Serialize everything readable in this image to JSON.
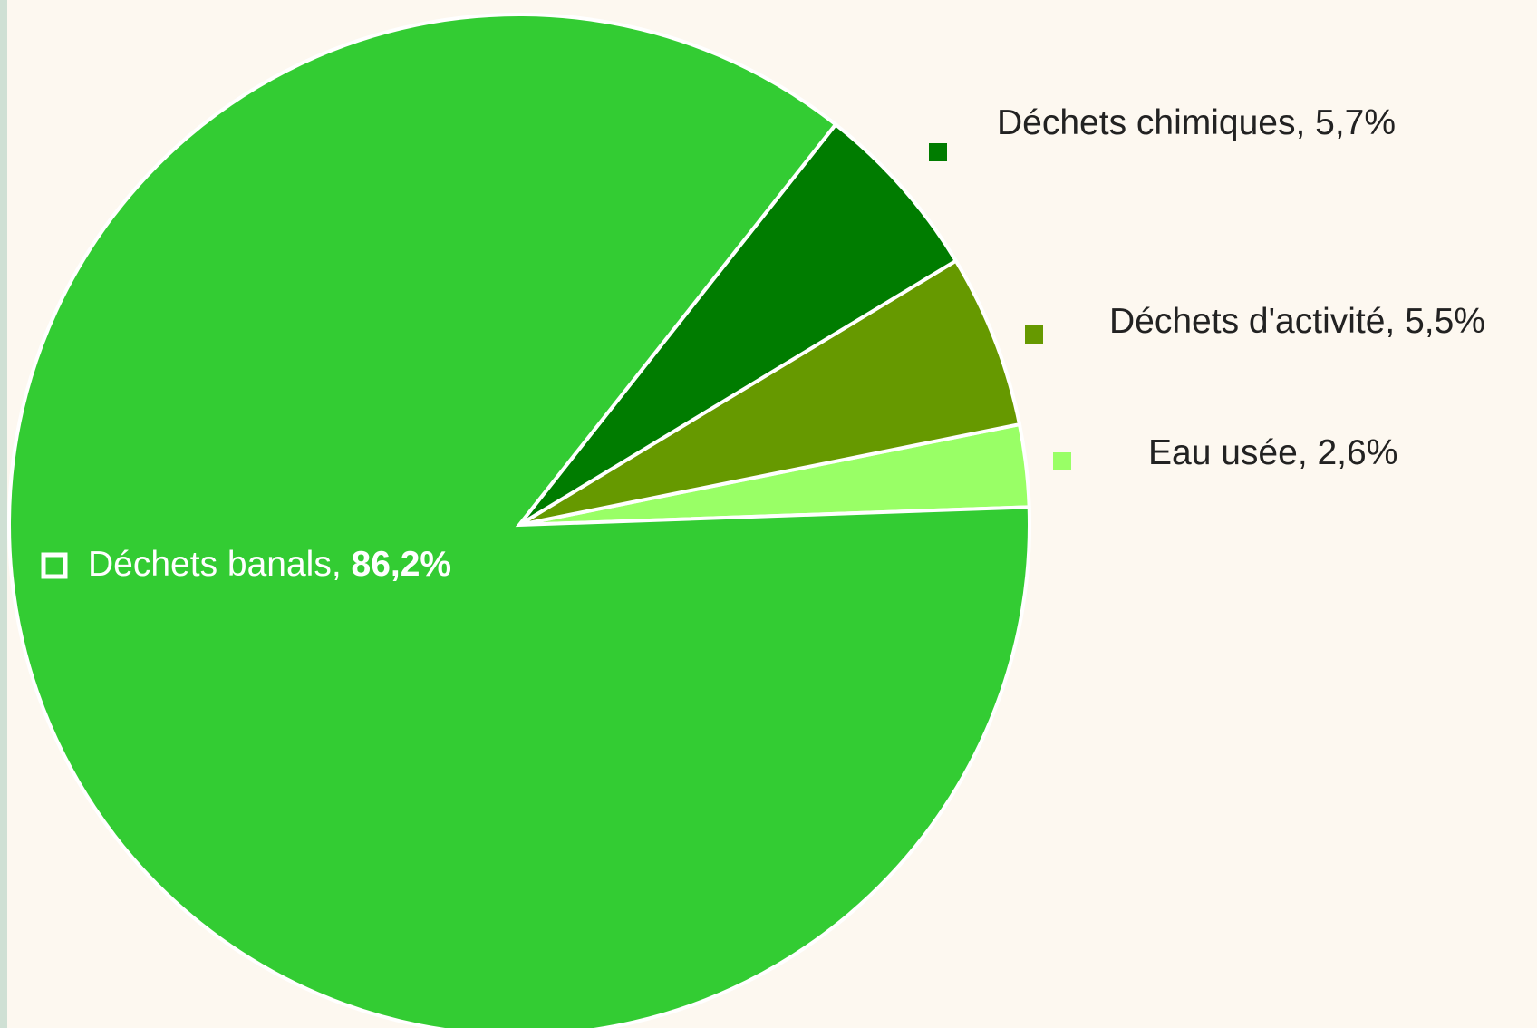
{
  "chart_data": {
    "type": "pie",
    "categories": [
      "Eau usée",
      "Déchets d'activité",
      "Déchets chimiques",
      "Déchets banals"
    ],
    "values": [
      2.6,
      5.5,
      5.7,
      86.2
    ],
    "value_labels": [
      "2,6%",
      "5,5%",
      "5,7%",
      "86,2%"
    ],
    "label_separator": ", ",
    "colors": [
      "#99ff66",
      "#669900",
      "#007c00",
      "#33cc33"
    ]
  }
}
